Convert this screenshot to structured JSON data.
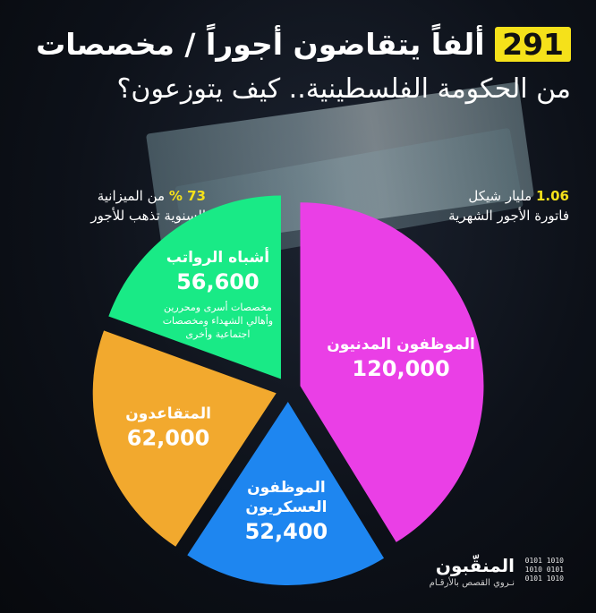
{
  "title": {
    "line1_number": "291",
    "line1_text": "ألفاً يتقاضون أجوراً / مخصصات",
    "line2_text": "من الحكومة الفلسطينية.. كيف يتوزعون؟"
  },
  "stats": {
    "budget_share": {
      "number": "73 %",
      "text1": "من الميزانية",
      "text2": "السنوية تذهب للأجور"
    },
    "monthly_bill": {
      "number": "1.06",
      "text1": "مليار شيكل",
      "text2": "فاتورة الأجور الشهرية"
    }
  },
  "colors": {
    "civil": "#ea3fe6",
    "military": "#1e86f0",
    "retirees": "#f2a92e",
    "quasi": "#19ea86"
  },
  "chart_data": {
    "type": "pie",
    "title": "291 ألفاً يتقاضون أجوراً / مخصصات من الحكومة الفلسطينية.. كيف يتوزعون؟",
    "slices": [
      {
        "label": "الموظفون المدنيون",
        "value": 120000,
        "value_label": "120,000",
        "color": "#ea3fe6"
      },
      {
        "label": "الموظفون العسكريون",
        "value": 52400,
        "value_label": "52,400",
        "color": "#1e86f0"
      },
      {
        "label": "المتقاعدون",
        "value": 62000,
        "value_label": "62,000",
        "color": "#f2a92e"
      },
      {
        "label": "أشباه الرواتب",
        "value": 56600,
        "value_label": "56,600",
        "color": "#19ea86",
        "note": [
          "مخصصات أسرى ومحررين",
          "وأهالي الشهداء ومخصصات",
          "اجتماعية وأخرى"
        ]
      }
    ]
  },
  "brand": {
    "name": "المنقّبون",
    "tagline": "نـروي القصص بالأرقـام",
    "binary": [
      "0101 1010",
      "1010 0101",
      "0101 1010"
    ]
  }
}
